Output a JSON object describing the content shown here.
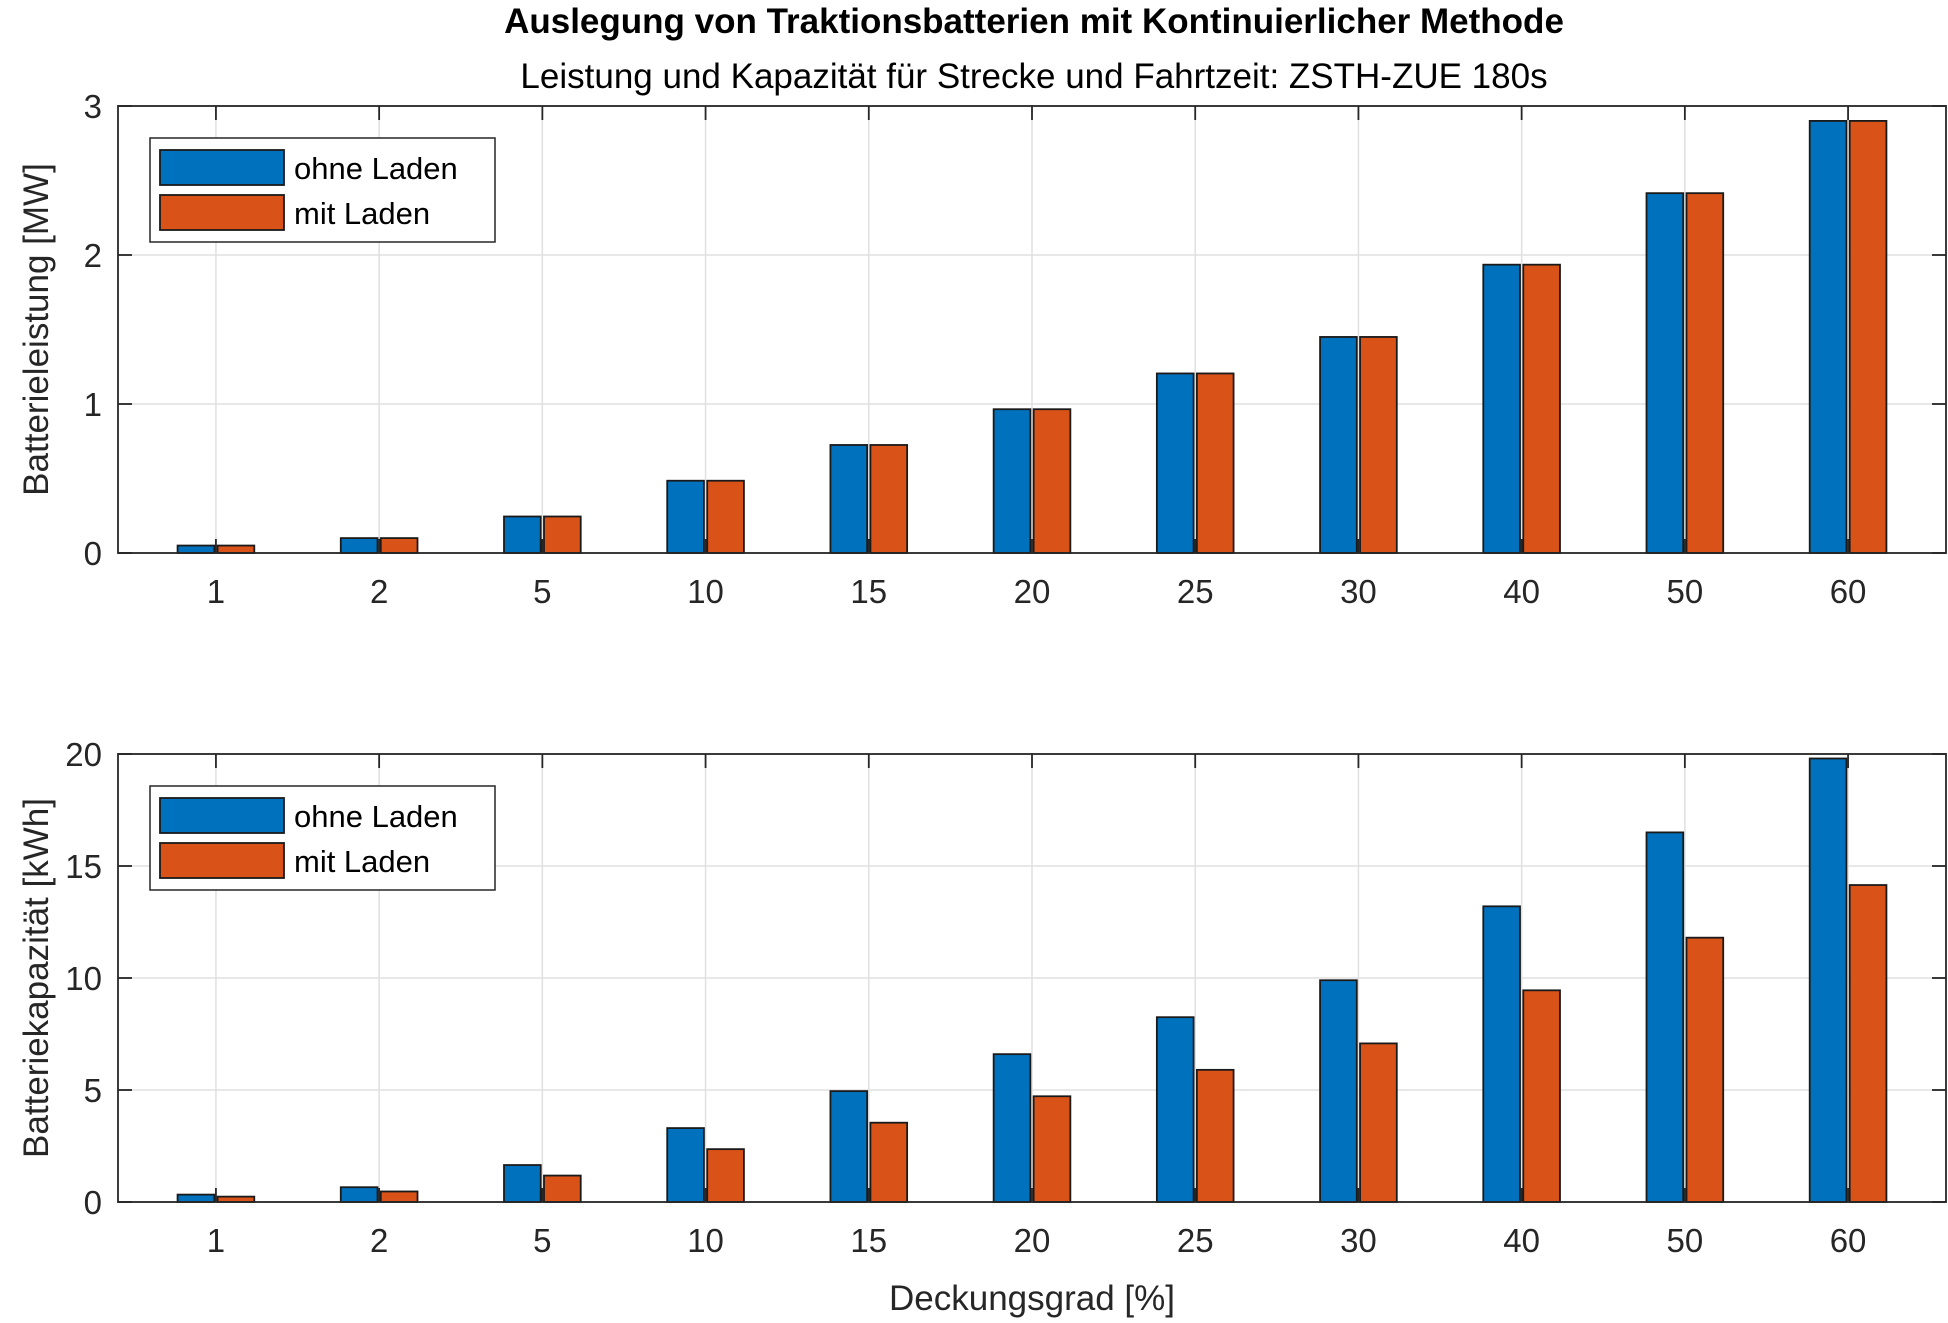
{
  "title": "Auslegung von Traktionsbatterien mit Kontinuierlicher Methode",
  "subtitle": "Leistung und Kapazität für Strecke und Fahrtzeit: ZSTH-ZUE 180s",
  "colors": {
    "ohne": "#0072BD",
    "mit": "#D95319"
  },
  "chart_data": [
    {
      "type": "bar",
      "categories": [
        "1",
        "2",
        "5",
        "10",
        "15",
        "20",
        "25",
        "30",
        "40",
        "50",
        "60"
      ],
      "series": [
        {
          "name": "ohne Laden",
          "values": [
            0.05,
            0.1,
            0.245,
            0.485,
            0.725,
            0.965,
            1.205,
            1.45,
            1.935,
            2.415,
            2.9
          ]
        },
        {
          "name": "mit Laden",
          "values": [
            0.05,
            0.1,
            0.245,
            0.485,
            0.725,
            0.965,
            1.205,
            1.45,
            1.935,
            2.415,
            2.9
          ]
        }
      ],
      "xlabel": "",
      "ylabel": "Batterieleistung [MW]",
      "ylim": [
        0,
        3
      ],
      "yticks": [
        "0",
        "1",
        "2",
        "3"
      ],
      "ytick_values": [
        0,
        1,
        2,
        3
      ],
      "grid": true,
      "legend": "top-left"
    },
    {
      "type": "bar",
      "categories": [
        "1",
        "2",
        "5",
        "10",
        "15",
        "20",
        "25",
        "30",
        "40",
        "50",
        "60"
      ],
      "series": [
        {
          "name": "ohne Laden",
          "values": [
            0.33,
            0.66,
            1.65,
            3.3,
            4.95,
            6.6,
            8.25,
            9.9,
            13.2,
            16.5,
            19.8
          ]
        },
        {
          "name": "mit Laden",
          "values": [
            0.24,
            0.47,
            1.18,
            2.36,
            3.54,
            4.72,
            5.9,
            7.08,
            9.45,
            11.8,
            14.15
          ]
        }
      ],
      "xlabel": "Deckungsgrad [%]",
      "ylabel": "Batteriekapazität [kWh]",
      "ylim": [
        0,
        20
      ],
      "yticks": [
        "0",
        "5",
        "10",
        "15",
        "20"
      ],
      "ytick_values": [
        0,
        5,
        10,
        15,
        20
      ],
      "grid": true,
      "legend": "top-left"
    }
  ]
}
